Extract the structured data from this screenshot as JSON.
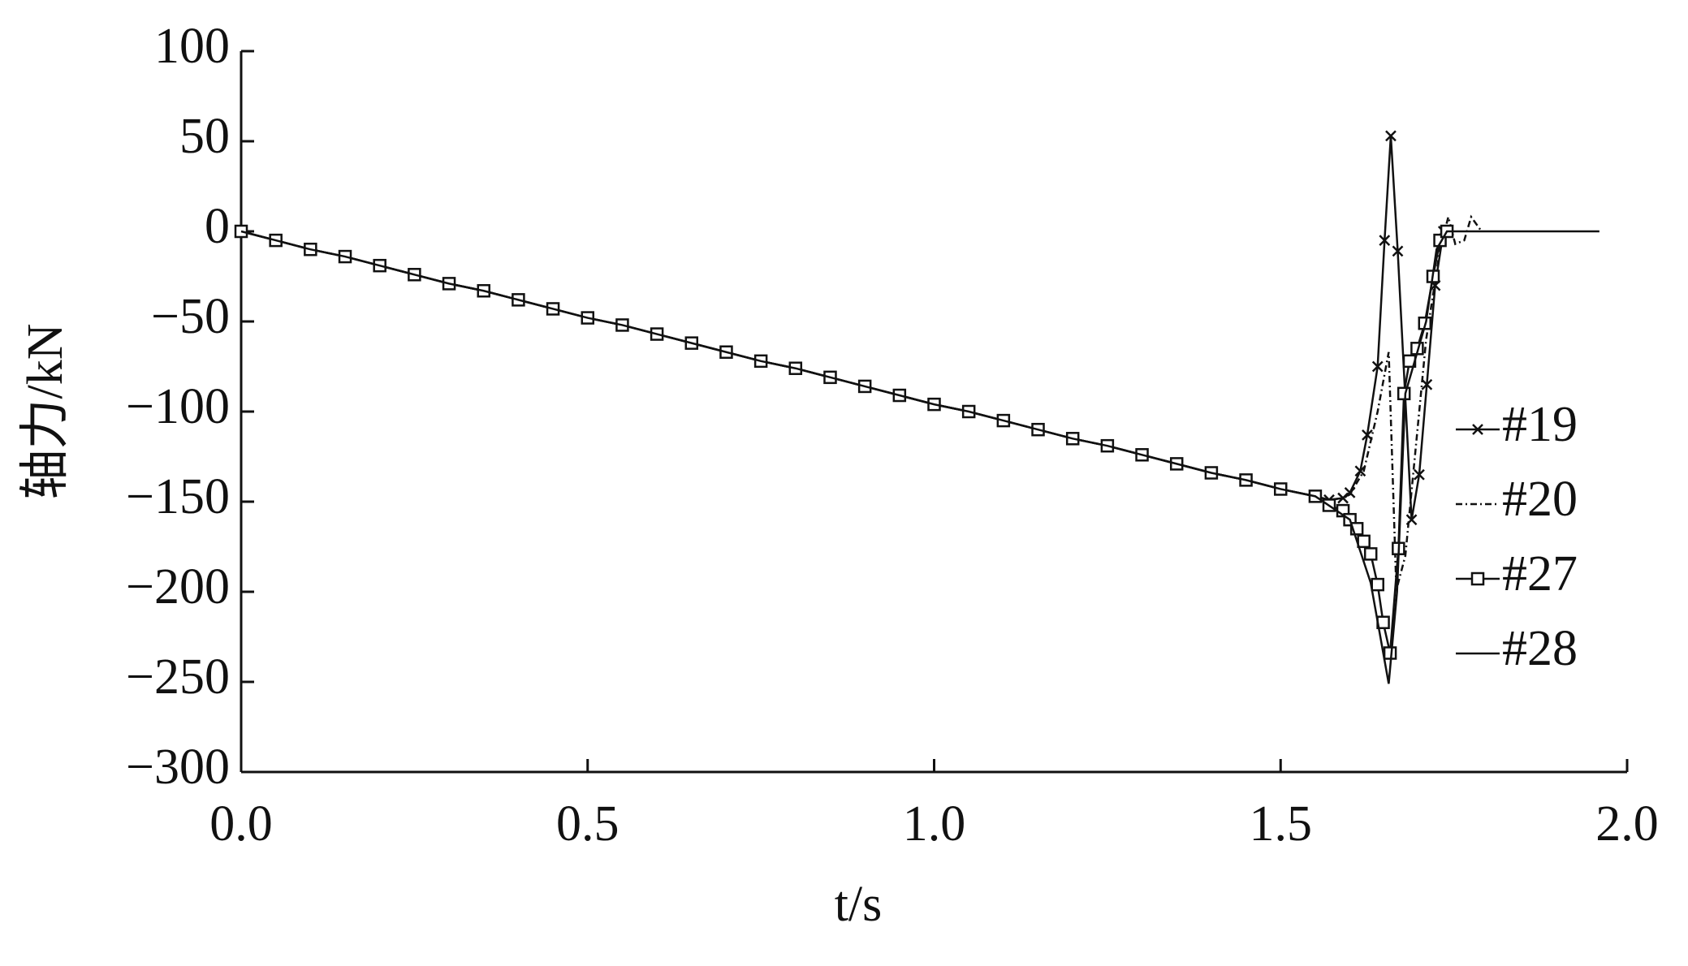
{
  "chart_data": {
    "type": "line",
    "x_label": "t/s",
    "y_label": "轴力/kN",
    "xlim": [
      0,
      2
    ],
    "ylim": [
      -300,
      100
    ],
    "xticks": [
      {
        "value": 0,
        "label": "0.0"
      },
      0.5,
      {
        "value": 1,
        "label": "1.0"
      },
      1.5,
      {
        "value": 2,
        "label": "2.0"
      }
    ],
    "yticks": [
      100,
      50,
      0,
      {
        "value": -50,
        "label": "−50"
      },
      {
        "value": -100,
        "label": "−100"
      },
      {
        "value": -150,
        "label": "−150"
      },
      {
        "value": -200,
        "label": "−200"
      },
      {
        "value": -250,
        "label": "−250"
      },
      {
        "value": -300,
        "label": "−300"
      }
    ],
    "series": [
      {
        "name": "#19",
        "color": "#111111",
        "marker": "x",
        "dash": "none",
        "x": [
          0,
          0.05,
          0.1,
          0.15,
          0.2,
          0.25,
          0.3,
          0.35,
          0.4,
          0.45,
          0.5,
          0.55,
          0.6,
          0.65,
          0.7,
          0.75,
          0.8,
          0.85,
          0.9,
          0.95,
          1.0,
          1.05,
          1.1,
          1.15,
          1.2,
          1.25,
          1.3,
          1.35,
          1.4,
          1.45,
          1.5,
          1.55,
          1.57,
          1.59,
          1.6,
          1.615,
          1.625,
          1.64,
          1.65,
          1.659,
          1.669,
          1.689,
          1.7,
          1.711,
          1.723,
          1.735
        ],
        "values": [
          0,
          -5,
          -10,
          -14,
          -19,
          -24,
          -29,
          -33,
          -38,
          -43,
          -48,
          -52,
          -57,
          -62,
          -67,
          -72,
          -76,
          -81,
          -86,
          -91,
          -96,
          -100,
          -105,
          -110,
          -115,
          -119,
          -124,
          -129,
          -134,
          -138,
          -143,
          -147,
          -149,
          -148,
          -145,
          -133,
          -113,
          -75,
          -5,
          53,
          -11,
          -160,
          -135,
          -85,
          -30,
          0
        ]
      },
      {
        "name": "#20",
        "color": "#111111",
        "marker": "none",
        "dash": "8 4 2 4",
        "x": [
          0,
          0.05,
          0.1,
          0.15,
          0.2,
          0.25,
          0.3,
          0.35,
          0.4,
          0.45,
          0.5,
          0.55,
          0.6,
          0.65,
          0.7,
          0.75,
          0.8,
          0.85,
          0.9,
          0.95,
          1.0,
          1.05,
          1.1,
          1.15,
          1.2,
          1.25,
          1.3,
          1.35,
          1.4,
          1.45,
          1.5,
          1.55,
          1.57,
          1.59,
          1.6,
          1.62,
          1.64,
          1.656,
          1.667,
          1.68,
          1.695,
          1.71,
          1.73,
          1.742,
          1.752,
          1.765,
          1.775,
          1.79
        ],
        "values": [
          0,
          -5,
          -10,
          -14,
          -19,
          -24,
          -29,
          -33,
          -38,
          -43,
          -48,
          -52,
          -57,
          -62,
          -67,
          -72,
          -76,
          -81,
          -86,
          -91,
          -96,
          -100,
          -105,
          -110,
          -115,
          -119,
          -124,
          -129,
          -134,
          -138,
          -143,
          -147,
          -149,
          -148,
          -146,
          -133,
          -100,
          -67,
          -199,
          -180,
          -120,
          -60,
          -10,
          8,
          -7,
          -5,
          8,
          0
        ]
      },
      {
        "name": "#27",
        "color": "#111111",
        "marker": "square",
        "dash": "none",
        "x": [
          0,
          0.05,
          0.1,
          0.15,
          0.2,
          0.25,
          0.3,
          0.35,
          0.4,
          0.45,
          0.5,
          0.55,
          0.6,
          0.65,
          0.7,
          0.75,
          0.8,
          0.85,
          0.9,
          0.95,
          1.0,
          1.05,
          1.1,
          1.15,
          1.2,
          1.25,
          1.3,
          1.35,
          1.4,
          1.45,
          1.5,
          1.55,
          1.57,
          1.59,
          1.6,
          1.61,
          1.62,
          1.63,
          1.64,
          1.648,
          1.658,
          1.67,
          1.678,
          1.686,
          1.697,
          1.708,
          1.72,
          1.73,
          1.74
        ],
        "values": [
          0,
          -5,
          -10,
          -14,
          -19,
          -24,
          -29,
          -33,
          -38,
          -43,
          -48,
          -52,
          -57,
          -62,
          -67,
          -72,
          -76,
          -81,
          -86,
          -91,
          -96,
          -100,
          -105,
          -110,
          -115,
          -119,
          -124,
          -129,
          -134,
          -138,
          -143,
          -147,
          -152,
          -155,
          -160,
          -165,
          -172,
          -179,
          -196,
          -217,
          -234,
          -176,
          -90,
          -72,
          -65,
          -51,
          -25,
          -5,
          0
        ]
      },
      {
        "name": "#28",
        "color": "#111111",
        "marker": "none",
        "dash": "none",
        "x": [
          0,
          0.05,
          0.1,
          0.15,
          0.2,
          0.25,
          0.3,
          0.35,
          0.4,
          0.45,
          0.5,
          0.55,
          0.6,
          0.65,
          0.7,
          0.75,
          0.8,
          0.85,
          0.9,
          0.95,
          1.0,
          1.05,
          1.1,
          1.15,
          1.2,
          1.25,
          1.3,
          1.35,
          1.4,
          1.45,
          1.5,
          1.55,
          1.6,
          1.63,
          1.656,
          1.668,
          1.68,
          1.71,
          1.725,
          1.74,
          1.96
        ],
        "values": [
          0,
          -5,
          -10,
          -14,
          -19,
          -24,
          -29,
          -33,
          -38,
          -43,
          -48,
          -52,
          -57,
          -62,
          -67,
          -72,
          -76,
          -81,
          -86,
          -91,
          -96,
          -100,
          -105,
          -110,
          -115,
          -119,
          -124,
          -129,
          -134,
          -138,
          -143,
          -147,
          -160,
          -195,
          -251,
          -200,
          -90,
          -50,
          -10,
          0,
          0
        ]
      }
    ]
  }
}
